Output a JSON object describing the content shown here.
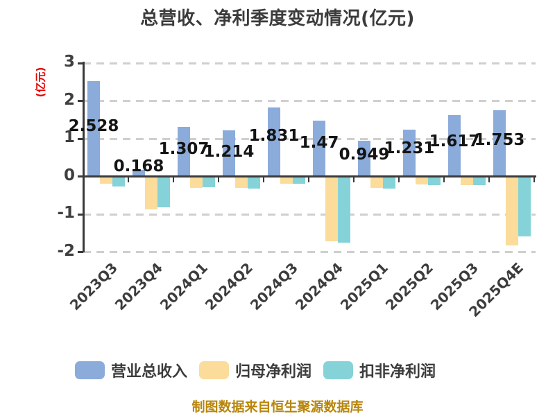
{
  "title": "总营收、净利季度变动情况(亿元)",
  "y_axis_label": "(亿元)",
  "source_note": "制图数据来自恒生聚源数据库",
  "chart_data": {
    "type": "bar",
    "title": "总营收、净利季度变动情况(亿元)",
    "xlabel": "",
    "ylabel": "(亿元)",
    "categories": [
      "2023Q3",
      "2023Q4",
      "2024Q1",
      "2024Q2",
      "2024Q3",
      "2024Q4",
      "2025Q1",
      "2025Q2",
      "2025Q3",
      "2025Q4E"
    ],
    "series": [
      {
        "name": "营业总收入",
        "color": "#8babda",
        "values": [
          2.528,
          0.168,
          1.307,
          1.214,
          1.831,
          1.47,
          0.949,
          1.231,
          1.617,
          1.753
        ],
        "data_labels": [
          "2.528",
          "0.168",
          "1.307",
          "1.214",
          "1.831",
          "1.47",
          "0.949",
          "1.231",
          "1.617",
          "1.753"
        ]
      },
      {
        "name": "归母净利润",
        "color": "#fbdc9b",
        "values": [
          -0.2,
          -0.87,
          -0.31,
          -0.31,
          -0.2,
          -1.72,
          -0.3,
          -0.22,
          -0.23,
          -1.82
        ]
      },
      {
        "name": "扣非净利润",
        "color": "#85d3d8",
        "values": [
          -0.26,
          -0.81,
          -0.28,
          -0.33,
          -0.19,
          -1.75,
          -0.33,
          -0.23,
          -0.23,
          -1.58
        ]
      }
    ],
    "ylim": [
      -2,
      3
    ],
    "y_ticks": [
      3,
      2,
      1,
      0,
      -1,
      -2
    ],
    "grid": "horizontal-dashed",
    "legend_position": "bottom"
  },
  "colors": {
    "background": "#ffffff",
    "axis": "#3a3a3a",
    "gridline": "#cfcfcf",
    "title_text": "#3b3b3b",
    "tick_text": "#3f3f3f",
    "y_axis_label_text": "#e60000",
    "value_label_text": "#141414",
    "legend_text": "#3c3c3c",
    "source_text": "#b8860b"
  }
}
